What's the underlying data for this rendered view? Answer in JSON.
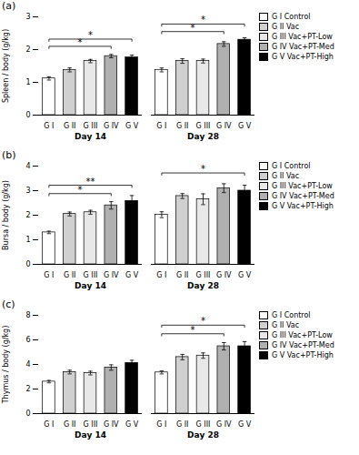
{
  "chart_data": [
    {
      "type": "bar",
      "title": "(a)",
      "ylabel": "Spleen / body (g/kg)",
      "ylim": [
        0,
        3
      ],
      "yticks": [
        0,
        1,
        2,
        3
      ],
      "categories": [
        "G I",
        "G II",
        "G III",
        "G IV",
        "G V"
      ],
      "colors": [
        "#ffffff",
        "#d0d0d0",
        "#e8e8e8",
        "#b0b0b0",
        "#000000"
      ],
      "series": [
        {
          "name": "Day 14",
          "values": [
            1.12,
            1.38,
            1.65,
            1.8,
            1.76
          ],
          "errors": [
            0.05,
            0.06,
            0.05,
            0.05,
            0.07
          ]
        },
        {
          "name": "Day 28",
          "values": [
            1.38,
            1.65,
            1.65,
            2.17,
            2.3
          ],
          "errors": [
            0.06,
            0.07,
            0.06,
            0.07,
            0.06
          ]
        }
      ],
      "annotations": [
        {
          "series": "Day 14",
          "from": "G I",
          "to": "G IV",
          "y": 2.1,
          "label": "*"
        },
        {
          "series": "Day 14",
          "from": "G I",
          "to": "G V",
          "y": 2.32,
          "label": "*"
        },
        {
          "series": "Day 28",
          "from": "G I",
          "to": "G IV",
          "y": 2.55,
          "label": "*"
        },
        {
          "series": "Day 28",
          "from": "G I",
          "to": "G V",
          "y": 2.78,
          "label": "*"
        }
      ],
      "legend": "right",
      "legend_labels": [
        "G I Control",
        "G II Vac",
        "G III Vac+PT-Low",
        "G IV Vac+PT-Med",
        "G V Vac+PT-High"
      ]
    },
    {
      "type": "bar",
      "title": "(b)",
      "ylabel": "Bursa / body (g/kg)",
      "ylim": [
        0,
        4
      ],
      "yticks": [
        0,
        1,
        2,
        3,
        4
      ],
      "categories": [
        "G I",
        "G II",
        "G III",
        "G IV",
        "G V"
      ],
      "colors": [
        "#ffffff",
        "#d0d0d0",
        "#e8e8e8",
        "#b0b0b0",
        "#000000"
      ],
      "series": [
        {
          "name": "Day 14",
          "values": [
            1.3,
            2.05,
            2.12,
            2.4,
            2.58
          ],
          "errors": [
            0.05,
            0.08,
            0.08,
            0.15,
            0.22
          ]
        },
        {
          "name": "Day 28",
          "values": [
            2.02,
            2.78,
            2.65,
            3.1,
            3.0
          ],
          "errors": [
            0.12,
            0.1,
            0.22,
            0.18,
            0.22
          ]
        }
      ],
      "annotations": [
        {
          "series": "Day 14",
          "from": "G I",
          "to": "G IV",
          "y": 2.88,
          "label": "*"
        },
        {
          "series": "Day 14",
          "from": "G I",
          "to": "G V",
          "y": 3.22,
          "label": "**"
        },
        {
          "series": "Day 28",
          "from": "G I",
          "to": "G V",
          "y": 3.72,
          "label": "*"
        }
      ],
      "legend": "right",
      "legend_labels": [
        "G I Control",
        "G II Vac",
        "G III Vac+PT-Low",
        "G IV Vac+PT-Med",
        "G V Vac+PT-High"
      ]
    },
    {
      "type": "bar",
      "title": "(c)",
      "ylabel": "Thymus / body (g/kg)",
      "ylim": [
        0,
        8
      ],
      "yticks": [
        0,
        2,
        4,
        6,
        8
      ],
      "categories": [
        "G I",
        "G II",
        "G III",
        "G IV",
        "G V"
      ],
      "colors": [
        "#ffffff",
        "#d0d0d0",
        "#e8e8e8",
        "#b0b0b0",
        "#000000"
      ],
      "series": [
        {
          "name": "Day 14",
          "values": [
            2.6,
            3.38,
            3.3,
            3.75,
            4.12
          ],
          "errors": [
            0.1,
            0.15,
            0.15,
            0.22,
            0.22
          ]
        },
        {
          "name": "Day 28",
          "values": [
            3.35,
            4.6,
            4.72,
            5.48,
            5.48
          ],
          "errors": [
            0.12,
            0.22,
            0.22,
            0.3,
            0.38
          ]
        }
      ],
      "annotations": [
        {
          "series": "Day 28",
          "from": "G I",
          "to": "G IV",
          "y": 6.5,
          "label": "*"
        },
        {
          "series": "Day 28",
          "from": "G I",
          "to": "G V",
          "y": 7.2,
          "label": "*"
        }
      ],
      "legend": "right",
      "legend_labels": [
        "G I Control",
        "G II Vac",
        "G III Vac+PT-Low",
        "G IV Vac+PT-Med",
        "G V Vac+PT-High"
      ]
    }
  ]
}
